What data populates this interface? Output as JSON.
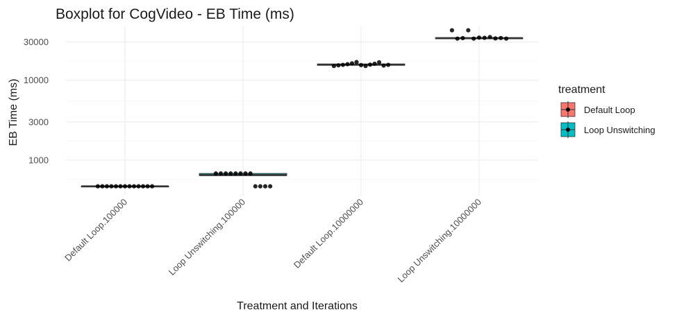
{
  "chart_data": {
    "type": "boxplot",
    "title": "Boxplot for CogVideo - EB Time (ms)",
    "xlabel": "Treatment and Iterations",
    "ylabel": "EB Time (ms)",
    "y_scale": "log10",
    "ylim": [
      360,
      47000
    ],
    "y_ticks": [
      1000,
      3000,
      10000,
      30000
    ],
    "y_tick_labels": [
      "1000",
      "3000",
      "10000",
      "30000"
    ],
    "grid": true,
    "categories": [
      "Default Loop.100000",
      "Loop Unswitching.100000",
      "Default Loop.10000000",
      "Loop Unswitching.10000000"
    ],
    "treatment_of_category": [
      "Default Loop",
      "Loop Unswitching",
      "Default Loop",
      "Loop Unswitching"
    ],
    "boxes": [
      {
        "q1": 470,
        "median": 470,
        "q3": 470
      },
      {
        "q1": 640,
        "median": 650,
        "q3": 680
      },
      {
        "q1": 15300,
        "median": 15600,
        "q3": 15900
      },
      {
        "q1": 33500,
        "median": 33500,
        "q3": 33500
      }
    ],
    "points": [
      [
        470,
        470,
        470,
        470,
        470,
        470,
        470,
        470,
        470,
        470,
        470,
        470,
        470
      ],
      [
        680,
        680,
        680,
        680,
        680,
        680,
        680,
        680,
        470,
        470,
        470,
        470
      ],
      [
        15000,
        15300,
        15500,
        15800,
        16200,
        16800,
        15400,
        15000,
        15600,
        16000,
        16700,
        15200,
        15500
      ],
      [
        42000,
        33000,
        33500,
        42000,
        33000,
        34000,
        33800,
        34500,
        33200,
        33600,
        33000
      ]
    ],
    "legend": {
      "title": "treatment",
      "position": "right",
      "entries": [
        {
          "label": "Default Loop",
          "color": "#F8766D"
        },
        {
          "label": "Loop Unswitching",
          "color": "#00BFC4"
        }
      ]
    }
  }
}
